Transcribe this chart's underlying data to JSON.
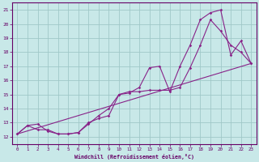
{
  "xlabel": "Windchill (Refroidissement éolien,°C)",
  "background_color": "#c8e8e8",
  "grid_color": "#a0c8c8",
  "line_color": "#882288",
  "xlim": [
    -0.5,
    23.5
  ],
  "ylim": [
    11.5,
    21.5
  ],
  "xticks": [
    0,
    1,
    2,
    3,
    4,
    5,
    6,
    7,
    8,
    9,
    10,
    11,
    12,
    13,
    14,
    15,
    16,
    17,
    18,
    19,
    20,
    21,
    22,
    23
  ],
  "yticks": [
    12,
    13,
    14,
    15,
    16,
    17,
    18,
    19,
    20,
    21
  ],
  "line1_x": [
    0,
    1,
    2,
    3,
    4,
    5,
    6,
    7,
    8,
    9,
    10,
    11,
    12,
    13,
    14,
    15,
    16,
    17,
    18,
    19,
    20,
    21,
    22,
    23
  ],
  "line1_y": [
    12.2,
    12.8,
    12.9,
    12.4,
    12.2,
    12.2,
    12.3,
    13.0,
    13.3,
    13.5,
    15.0,
    15.1,
    15.5,
    16.9,
    17.0,
    15.2,
    17.0,
    18.5,
    20.3,
    20.8,
    21.0,
    17.8,
    18.8,
    17.2
  ],
  "line2_x": [
    0,
    1,
    2,
    3,
    4,
    5,
    6,
    7,
    8,
    9,
    10,
    11,
    12,
    13,
    14,
    15,
    16,
    17,
    18,
    19,
    20,
    21,
    22,
    23
  ],
  "line2_y": [
    12.2,
    12.8,
    12.5,
    12.5,
    12.2,
    12.2,
    12.3,
    12.9,
    13.5,
    14.0,
    15.0,
    15.2,
    15.2,
    15.3,
    15.3,
    15.3,
    15.5,
    16.9,
    18.5,
    20.3,
    19.5,
    18.5,
    18.0,
    17.2
  ],
  "line3_x": [
    0,
    23
  ],
  "line3_y": [
    12.2,
    17.2
  ]
}
